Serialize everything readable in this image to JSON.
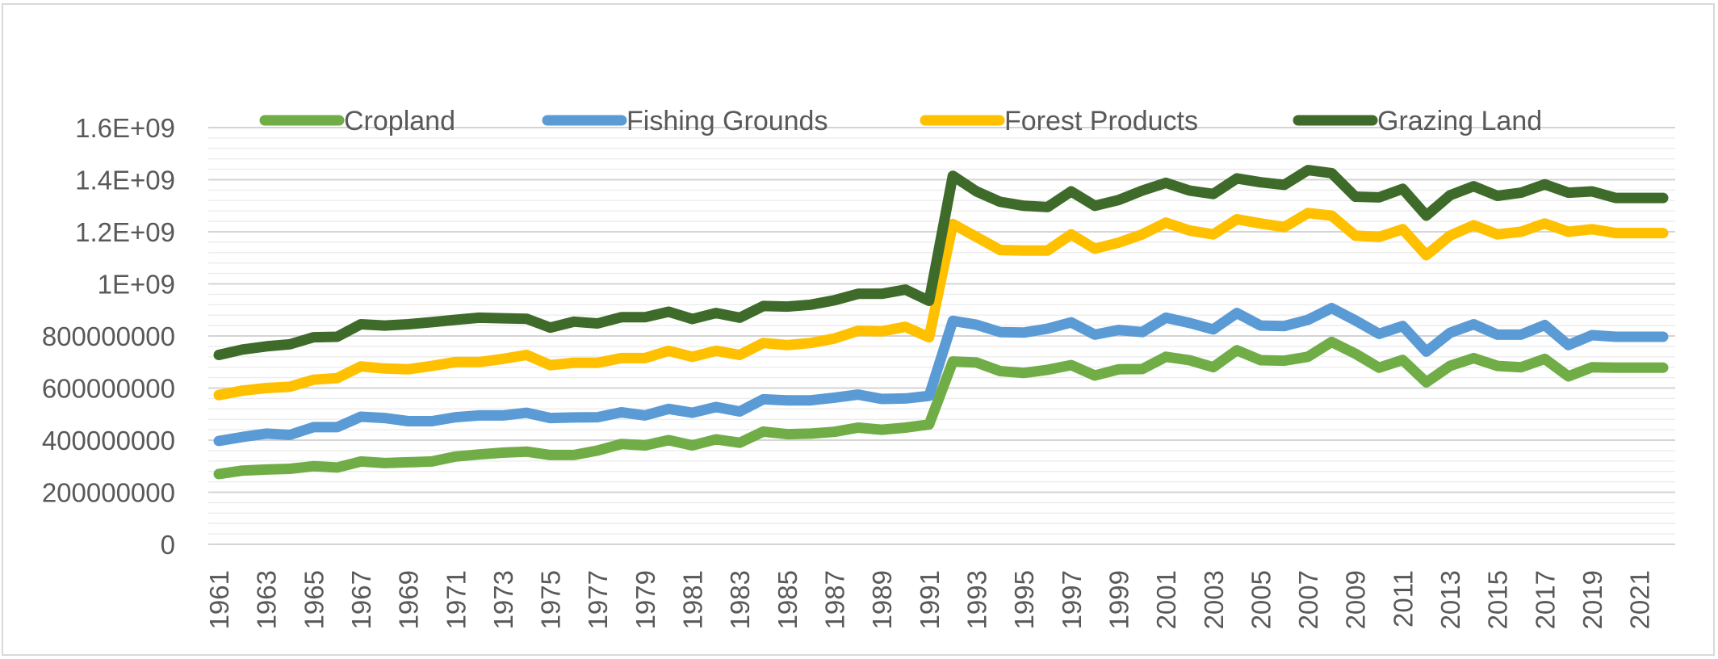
{
  "chart_data": {
    "type": "line",
    "title": "",
    "xlabel": "",
    "ylabel": "",
    "ylim": [
      0,
      1600000000
    ],
    "y_ticks": [
      {
        "value": 0,
        "label": "0"
      },
      {
        "value": 200000000,
        "label": "200000000"
      },
      {
        "value": 400000000,
        "label": "400000000"
      },
      {
        "value": 600000000,
        "label": "600000000"
      },
      {
        "value": 800000000,
        "label": "800000000"
      },
      {
        "value": 1000000000,
        "label": "1E+09"
      },
      {
        "value": 1200000000,
        "label": "1.2E+09"
      },
      {
        "value": 1400000000,
        "label": "1.4E+09"
      },
      {
        "value": 1600000000,
        "label": "1.6E+09"
      }
    ],
    "x_tick_labels": [
      "1961",
      "1963",
      "1965",
      "1967",
      "1969",
      "1971",
      "1973",
      "1975",
      "1977",
      "1979",
      "1981",
      "1983",
      "1985",
      "1987",
      "1989",
      "1991",
      "1993",
      "1995",
      "1997",
      "1999",
      "2001",
      "2003",
      "2005",
      "2007",
      "2009",
      "2011",
      "2013",
      "2015",
      "2017",
      "2019",
      "2021"
    ],
    "grid": true,
    "legend_position": "top",
    "x": [
      1961,
      1962,
      1963,
      1964,
      1965,
      1966,
      1967,
      1968,
      1969,
      1970,
      1971,
      1972,
      1973,
      1974,
      1975,
      1976,
      1977,
      1978,
      1979,
      1980,
      1981,
      1982,
      1983,
      1984,
      1985,
      1986,
      1987,
      1988,
      1989,
      1990,
      1991,
      1992,
      1993,
      1994,
      1995,
      1996,
      1997,
      1998,
      1999,
      2000,
      2001,
      2002,
      2003,
      2004,
      2005,
      2006,
      2007,
      2008,
      2009,
      2010,
      2011,
      2012,
      2013,
      2014,
      2015,
      2016,
      2017,
      2018,
      2019,
      2020,
      2021,
      2022
    ],
    "series": [
      {
        "name": "Cropland",
        "color": "#70ad47",
        "values": [
          270000000,
          283000000,
          287000000,
          290000000,
          300000000,
          295000000,
          318000000,
          312000000,
          315000000,
          318000000,
          337000000,
          345000000,
          352000000,
          356000000,
          343000000,
          343000000,
          360000000,
          385000000,
          380000000,
          400000000,
          380000000,
          403000000,
          390000000,
          433000000,
          423000000,
          425000000,
          432000000,
          448000000,
          440000000,
          448000000,
          460000000,
          702000000,
          698000000,
          665000000,
          658000000,
          670000000,
          688000000,
          648000000,
          672000000,
          673000000,
          720000000,
          707000000,
          680000000,
          745000000,
          707000000,
          705000000,
          720000000,
          777000000,
          732000000,
          678000000,
          708000000,
          622000000,
          685000000,
          715000000,
          685000000,
          680000000,
          712000000,
          645000000,
          680000000,
          678000000,
          678000000,
          678000000
        ]
      },
      {
        "name": "Fishing Grounds",
        "color": "#5b9bd5",
        "values": [
          397000000,
          412000000,
          425000000,
          420000000,
          450000000,
          450000000,
          490000000,
          485000000,
          473000000,
          473000000,
          488000000,
          495000000,
          495000000,
          505000000,
          485000000,
          487000000,
          488000000,
          507000000,
          495000000,
          520000000,
          505000000,
          527000000,
          510000000,
          557000000,
          553000000,
          553000000,
          563000000,
          575000000,
          558000000,
          560000000,
          570000000,
          858000000,
          843000000,
          815000000,
          813000000,
          828000000,
          852000000,
          805000000,
          823000000,
          815000000,
          870000000,
          850000000,
          825000000,
          888000000,
          840000000,
          838000000,
          862000000,
          907000000,
          860000000,
          808000000,
          838000000,
          740000000,
          812000000,
          845000000,
          805000000,
          805000000,
          842000000,
          765000000,
          803000000,
          797000000,
          797000000,
          797000000
        ]
      },
      {
        "name": "Forest Products",
        "color": "#ffc000",
        "values": [
          573000000,
          590000000,
          600000000,
          605000000,
          632000000,
          638000000,
          683000000,
          675000000,
          672000000,
          685000000,
          700000000,
          700000000,
          712000000,
          727000000,
          688000000,
          697000000,
          697000000,
          715000000,
          715000000,
          743000000,
          720000000,
          743000000,
          727000000,
          773000000,
          765000000,
          773000000,
          790000000,
          820000000,
          818000000,
          835000000,
          795000000,
          1230000000,
          1180000000,
          1130000000,
          1128000000,
          1128000000,
          1190000000,
          1135000000,
          1158000000,
          1190000000,
          1235000000,
          1205000000,
          1190000000,
          1248000000,
          1232000000,
          1218000000,
          1272000000,
          1262000000,
          1185000000,
          1180000000,
          1210000000,
          1110000000,
          1185000000,
          1225000000,
          1190000000,
          1200000000,
          1232000000,
          1200000000,
          1210000000,
          1195000000,
          1195000000,
          1195000000
        ]
      },
      {
        "name": "Grazing Land",
        "color": "#3e6b2a",
        "values": [
          727000000,
          748000000,
          760000000,
          768000000,
          795000000,
          797000000,
          845000000,
          840000000,
          845000000,
          853000000,
          862000000,
          870000000,
          868000000,
          866000000,
          832000000,
          855000000,
          848000000,
          872000000,
          872000000,
          893000000,
          865000000,
          888000000,
          870000000,
          915000000,
          913000000,
          920000000,
          937000000,
          962000000,
          962000000,
          978000000,
          935000000,
          1415000000,
          1355000000,
          1315000000,
          1300000000,
          1295000000,
          1355000000,
          1300000000,
          1322000000,
          1358000000,
          1388000000,
          1358000000,
          1345000000,
          1405000000,
          1390000000,
          1380000000,
          1437000000,
          1425000000,
          1335000000,
          1332000000,
          1365000000,
          1262000000,
          1340000000,
          1375000000,
          1338000000,
          1350000000,
          1382000000,
          1350000000,
          1355000000,
          1330000000,
          1330000000,
          1330000000
        ]
      }
    ]
  }
}
